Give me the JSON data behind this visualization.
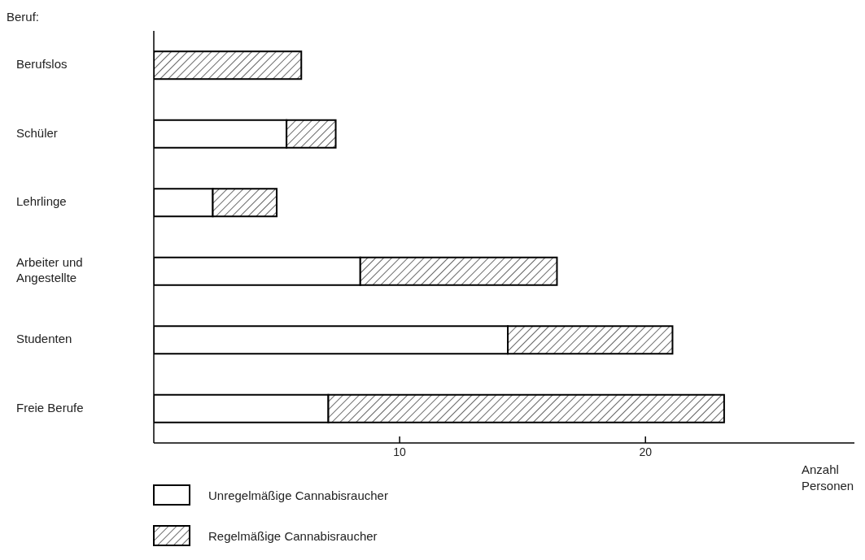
{
  "chart_data": {
    "type": "bar",
    "orientation": "horizontal",
    "stacked": true,
    "ylabel": "Beruf:",
    "xlabel": "Anzahl Personen",
    "categories": [
      "Berufslos",
      "Schüler",
      "Lehrlinge",
      "Arbeiter und Angestellte",
      "Studenten",
      "Freie Berufe"
    ],
    "series": [
      {
        "name": "Unregelmäßige Cannabisraucher",
        "color": "#ffffff",
        "values": [
          null,
          5.4,
          2.4,
          8.4,
          14.4,
          7.1
        ]
      },
      {
        "name": "Regelmäßige Cannabisraucher",
        "color": "#000000",
        "values": [
          6.0,
          2.0,
          2.6,
          8.0,
          6.7,
          16.1
        ]
      }
    ],
    "xlim": [
      0,
      28.5
    ],
    "xticks": [
      10,
      20
    ],
    "grid": false,
    "legend": "bottom left"
  }
}
